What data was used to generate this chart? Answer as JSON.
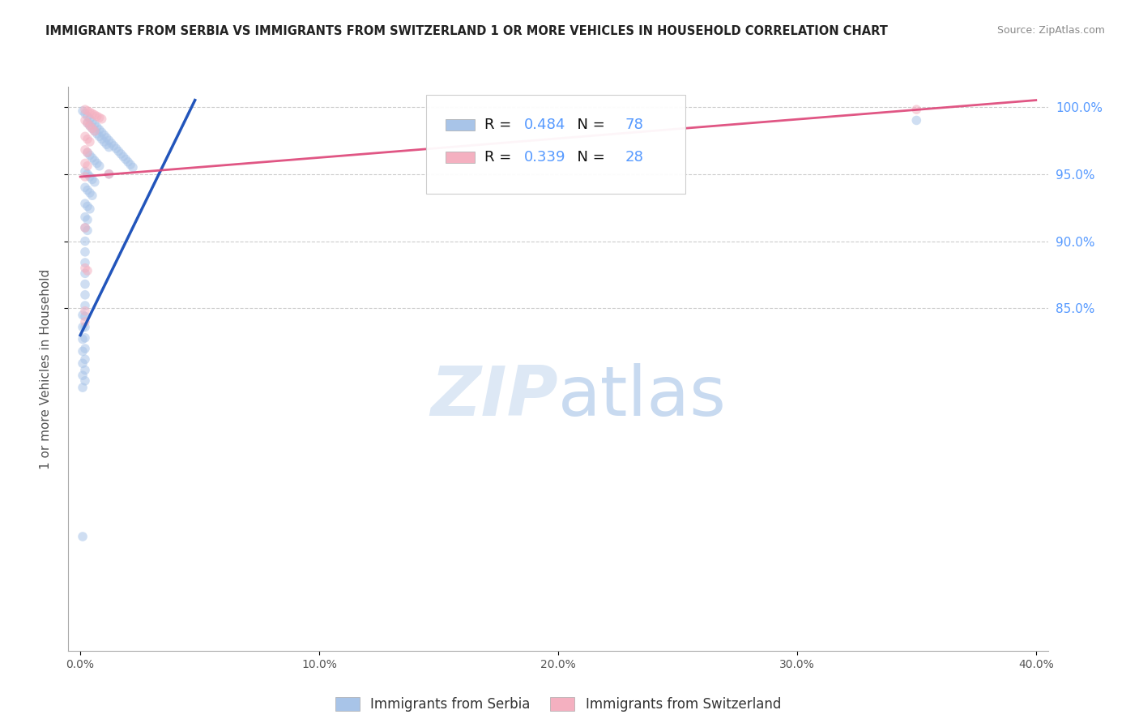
{
  "title": "IMMIGRANTS FROM SERBIA VS IMMIGRANTS FROM SWITZERLAND 1 OR MORE VEHICLES IN HOUSEHOLD CORRELATION CHART",
  "source": "Source: ZipAtlas.com",
  "ylabel": "1 or more Vehicles in Household",
  "watermark": "ZIPatlas",
  "legend_entries": [
    {
      "label": "Immigrants from Serbia",
      "color": "#a8c4e8",
      "R": 0.484,
      "N": 78
    },
    {
      "label": "Immigrants from Switzerland",
      "color": "#f4b0c0",
      "R": 0.339,
      "N": 28
    }
  ],
  "serbia_scatter": [
    [
      0.001,
      0.997
    ],
    [
      0.002,
      0.995
    ],
    [
      0.003,
      0.993
    ],
    [
      0.004,
      0.991
    ],
    [
      0.005,
      0.989
    ],
    [
      0.006,
      0.987
    ],
    [
      0.007,
      0.985
    ],
    [
      0.008,
      0.983
    ],
    [
      0.009,
      0.981
    ],
    [
      0.01,
      0.979
    ],
    [
      0.011,
      0.977
    ],
    [
      0.012,
      0.975
    ],
    [
      0.013,
      0.973
    ],
    [
      0.014,
      0.971
    ],
    [
      0.015,
      0.969
    ],
    [
      0.016,
      0.967
    ],
    [
      0.017,
      0.965
    ],
    [
      0.018,
      0.963
    ],
    [
      0.019,
      0.961
    ],
    [
      0.02,
      0.959
    ],
    [
      0.021,
      0.957
    ],
    [
      0.022,
      0.955
    ],
    [
      0.003,
      0.988
    ],
    [
      0.004,
      0.986
    ],
    [
      0.005,
      0.984
    ],
    [
      0.006,
      0.982
    ],
    [
      0.007,
      0.98
    ],
    [
      0.008,
      0.978
    ],
    [
      0.009,
      0.976
    ],
    [
      0.01,
      0.974
    ],
    [
      0.011,
      0.972
    ],
    [
      0.012,
      0.97
    ],
    [
      0.003,
      0.966
    ],
    [
      0.004,
      0.964
    ],
    [
      0.005,
      0.962
    ],
    [
      0.006,
      0.96
    ],
    [
      0.007,
      0.958
    ],
    [
      0.008,
      0.956
    ],
    [
      0.002,
      0.952
    ],
    [
      0.003,
      0.95
    ],
    [
      0.004,
      0.948
    ],
    [
      0.005,
      0.946
    ],
    [
      0.006,
      0.944
    ],
    [
      0.002,
      0.94
    ],
    [
      0.003,
      0.938
    ],
    [
      0.004,
      0.936
    ],
    [
      0.005,
      0.934
    ],
    [
      0.002,
      0.928
    ],
    [
      0.003,
      0.926
    ],
    [
      0.004,
      0.924
    ],
    [
      0.002,
      0.918
    ],
    [
      0.003,
      0.916
    ],
    [
      0.002,
      0.91
    ],
    [
      0.003,
      0.908
    ],
    [
      0.002,
      0.9
    ],
    [
      0.002,
      0.892
    ],
    [
      0.002,
      0.884
    ],
    [
      0.002,
      0.876
    ],
    [
      0.002,
      0.868
    ],
    [
      0.002,
      0.86
    ],
    [
      0.002,
      0.852
    ],
    [
      0.002,
      0.844
    ],
    [
      0.002,
      0.836
    ],
    [
      0.002,
      0.828
    ],
    [
      0.002,
      0.82
    ],
    [
      0.002,
      0.812
    ],
    [
      0.002,
      0.804
    ],
    [
      0.002,
      0.796
    ],
    [
      0.001,
      0.845
    ],
    [
      0.001,
      0.836
    ],
    [
      0.001,
      0.827
    ],
    [
      0.001,
      0.818
    ],
    [
      0.001,
      0.809
    ],
    [
      0.001,
      0.8
    ],
    [
      0.001,
      0.791
    ],
    [
      0.001,
      0.68
    ],
    [
      0.012,
      0.95
    ],
    [
      0.35,
      0.99
    ]
  ],
  "switzerland_scatter": [
    [
      0.002,
      0.998
    ],
    [
      0.003,
      0.997
    ],
    [
      0.004,
      0.996
    ],
    [
      0.005,
      0.995
    ],
    [
      0.006,
      0.994
    ],
    [
      0.007,
      0.993
    ],
    [
      0.008,
      0.992
    ],
    [
      0.009,
      0.991
    ],
    [
      0.002,
      0.99
    ],
    [
      0.003,
      0.988
    ],
    [
      0.004,
      0.986
    ],
    [
      0.005,
      0.984
    ],
    [
      0.006,
      0.982
    ],
    [
      0.002,
      0.978
    ],
    [
      0.003,
      0.976
    ],
    [
      0.004,
      0.974
    ],
    [
      0.002,
      0.968
    ],
    [
      0.003,
      0.966
    ],
    [
      0.002,
      0.958
    ],
    [
      0.003,
      0.956
    ],
    [
      0.002,
      0.948
    ],
    [
      0.012,
      0.95
    ],
    [
      0.002,
      0.91
    ],
    [
      0.002,
      0.88
    ],
    [
      0.003,
      0.878
    ],
    [
      0.002,
      0.848
    ],
    [
      0.002,
      0.84
    ],
    [
      0.35,
      0.998
    ]
  ],
  "serbia_line_x": [
    0.0,
    0.048
  ],
  "serbia_line_y": [
    0.83,
    1.005
  ],
  "switzerland_line_x": [
    0.0,
    0.4
  ],
  "switzerland_line_y": [
    0.948,
    1.005
  ],
  "xlim": [
    -0.005,
    0.405
  ],
  "ylim": [
    0.595,
    1.015
  ],
  "xticks": [
    0.0,
    0.1,
    0.2,
    0.3,
    0.4
  ],
  "xticklabels": [
    "0.0%",
    "10.0%",
    "20.0%",
    "30.0%",
    "40.0%"
  ],
  "yticks": [
    0.85,
    0.9,
    0.95,
    1.0
  ],
  "yticklabels": [
    "85.0%",
    "90.0%",
    "95.0%",
    "100.0%"
  ],
  "grid_yticks": [
    0.85,
    0.9,
    0.95,
    1.0
  ],
  "grid_color": "#cccccc",
  "scatter_size": 70,
  "scatter_alpha": 0.55,
  "line_blue_color": "#2255bb",
  "line_pink_color": "#dd4477",
  "title_color": "#222222",
  "source_color": "#888888",
  "watermark_color": "#dde8f5",
  "tick_color": "#5599ff",
  "bottom_legend_text_color": "#333333"
}
